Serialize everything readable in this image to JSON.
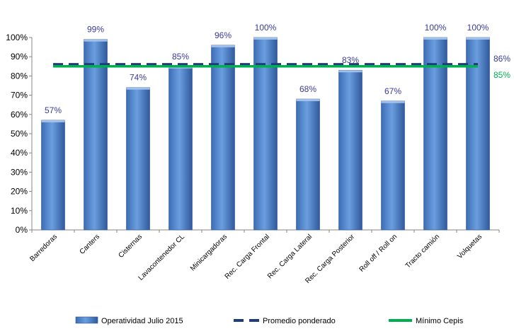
{
  "chart_data": {
    "type": "bar",
    "categories": [
      "Barredoras",
      "Canters",
      "Cisternas",
      "Lavacontenedor CL",
      "Minicargadoras",
      "Rec. Carga Frontal",
      "Rec. Carga Lateral",
      "Rec. Carga Posterior",
      "Roll off / Roll on",
      "Tracto camión",
      "Volquetas"
    ],
    "series": [
      {
        "name": "Operatividad Julio 2015",
        "type": "bar",
        "color": "#5b8fd6",
        "values": [
          57,
          99,
          74,
          85,
          96,
          100,
          68,
          83,
          67,
          100,
          100
        ],
        "labels": [
          "57%",
          "99%",
          "74%",
          "85%",
          "96%",
          "100%",
          "68%",
          "83%",
          "67%",
          "100%",
          "100%"
        ]
      },
      {
        "name": "Promedio ponderado",
        "type": "line",
        "style": "dashed",
        "color": "#1f3d7a",
        "value": 86,
        "label": "86%"
      },
      {
        "name": "Mínimo Cepis",
        "type": "line",
        "style": "solid",
        "color": "#00b050",
        "value": 85,
        "label": "85%"
      }
    ],
    "yticks": [
      "0%",
      "10%",
      "20%",
      "30%",
      "40%",
      "50%",
      "60%",
      "70%",
      "80%",
      "90%",
      "100%"
    ],
    "ylim": [
      0,
      100
    ],
    "grid": false,
    "legend": "bottom"
  }
}
